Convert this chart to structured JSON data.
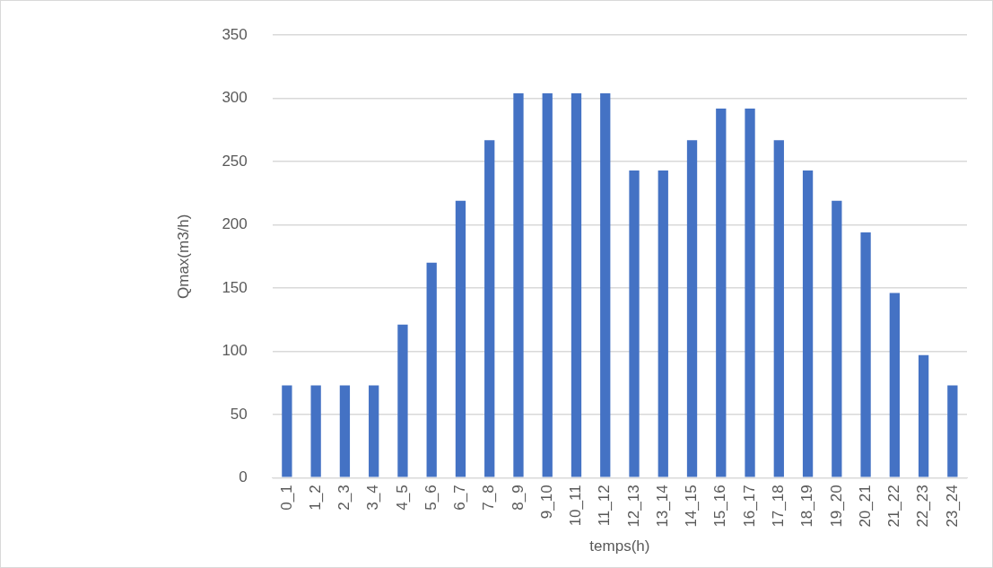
{
  "chart_data": {
    "type": "bar",
    "xlabel": "temps(h)",
    "ylabel": "Qmax(m3/h)",
    "categories": [
      "0_1",
      "1_2",
      "2_3",
      "3_4",
      "4_5",
      "5_6",
      "6_7",
      "7_8",
      "8_9",
      "9_10",
      "10_11",
      "11_12",
      "12_13",
      "13_14",
      "14_15",
      "15_16",
      "16_17",
      "17_18",
      "18_19",
      "19_20",
      "20_21",
      "21_22",
      "22_23",
      "23_24"
    ],
    "values": [
      73,
      73,
      73,
      73,
      121,
      170,
      219,
      267,
      304,
      304,
      304,
      304,
      243,
      243,
      267,
      292,
      292,
      267,
      243,
      219,
      194,
      146,
      97,
      73
    ],
    "color": "#4472c4",
    "ylim": [
      0,
      350
    ],
    "yticks": [
      0,
      50,
      100,
      150,
      200,
      250,
      300,
      350
    ],
    "grid": "y",
    "legend": false
  }
}
